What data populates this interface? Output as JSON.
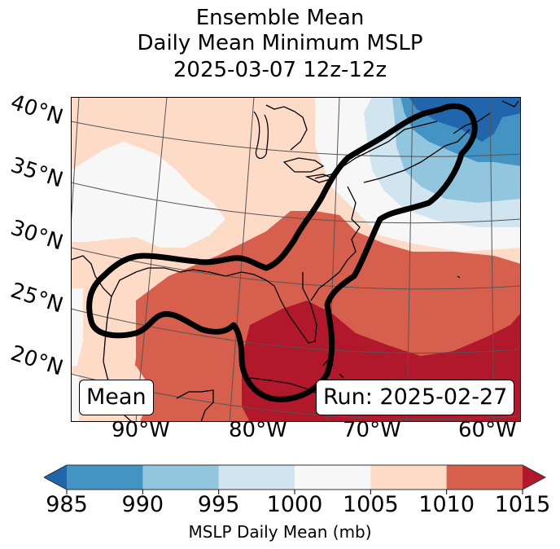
{
  "title_lines": [
    "Ensemble Mean",
    "Daily Mean Minimum MSLP",
    "2025-03-07 12z-12z"
  ],
  "map": {
    "lat_labels": [
      "40°N",
      "35°N",
      "30°N",
      "25°N",
      "20°N"
    ],
    "lon_labels": [
      "90°W",
      "80°W",
      "70°W",
      "60°W"
    ],
    "annotation_left": "Mean",
    "annotation_right": "Run: 2025-02-27",
    "contour_color": "#000000",
    "coastline_color": "#000000",
    "gridline_color": "#555555"
  },
  "colorbar": {
    "ticks": [
      "985",
      "990",
      "995",
      "1000",
      "1005",
      "1010",
      "1015"
    ],
    "label": "MSLP Daily Mean (mb)",
    "under_color": "#2166ac",
    "over_color": "#b2182b",
    "levels": [
      {
        "from": 985,
        "to": 990,
        "color": "#4393c3"
      },
      {
        "from": 990,
        "to": 995,
        "color": "#92c5de"
      },
      {
        "from": 995,
        "to": 1000,
        "color": "#d1e5f0"
      },
      {
        "from": 1000,
        "to": 1005,
        "color": "#f7f7f7"
      },
      {
        "from": 1005,
        "to": 1010,
        "color": "#fddbc7"
      },
      {
        "from": 1010,
        "to": 1015,
        "color": "#d6604d"
      }
    ],
    "extend": "both"
  }
}
